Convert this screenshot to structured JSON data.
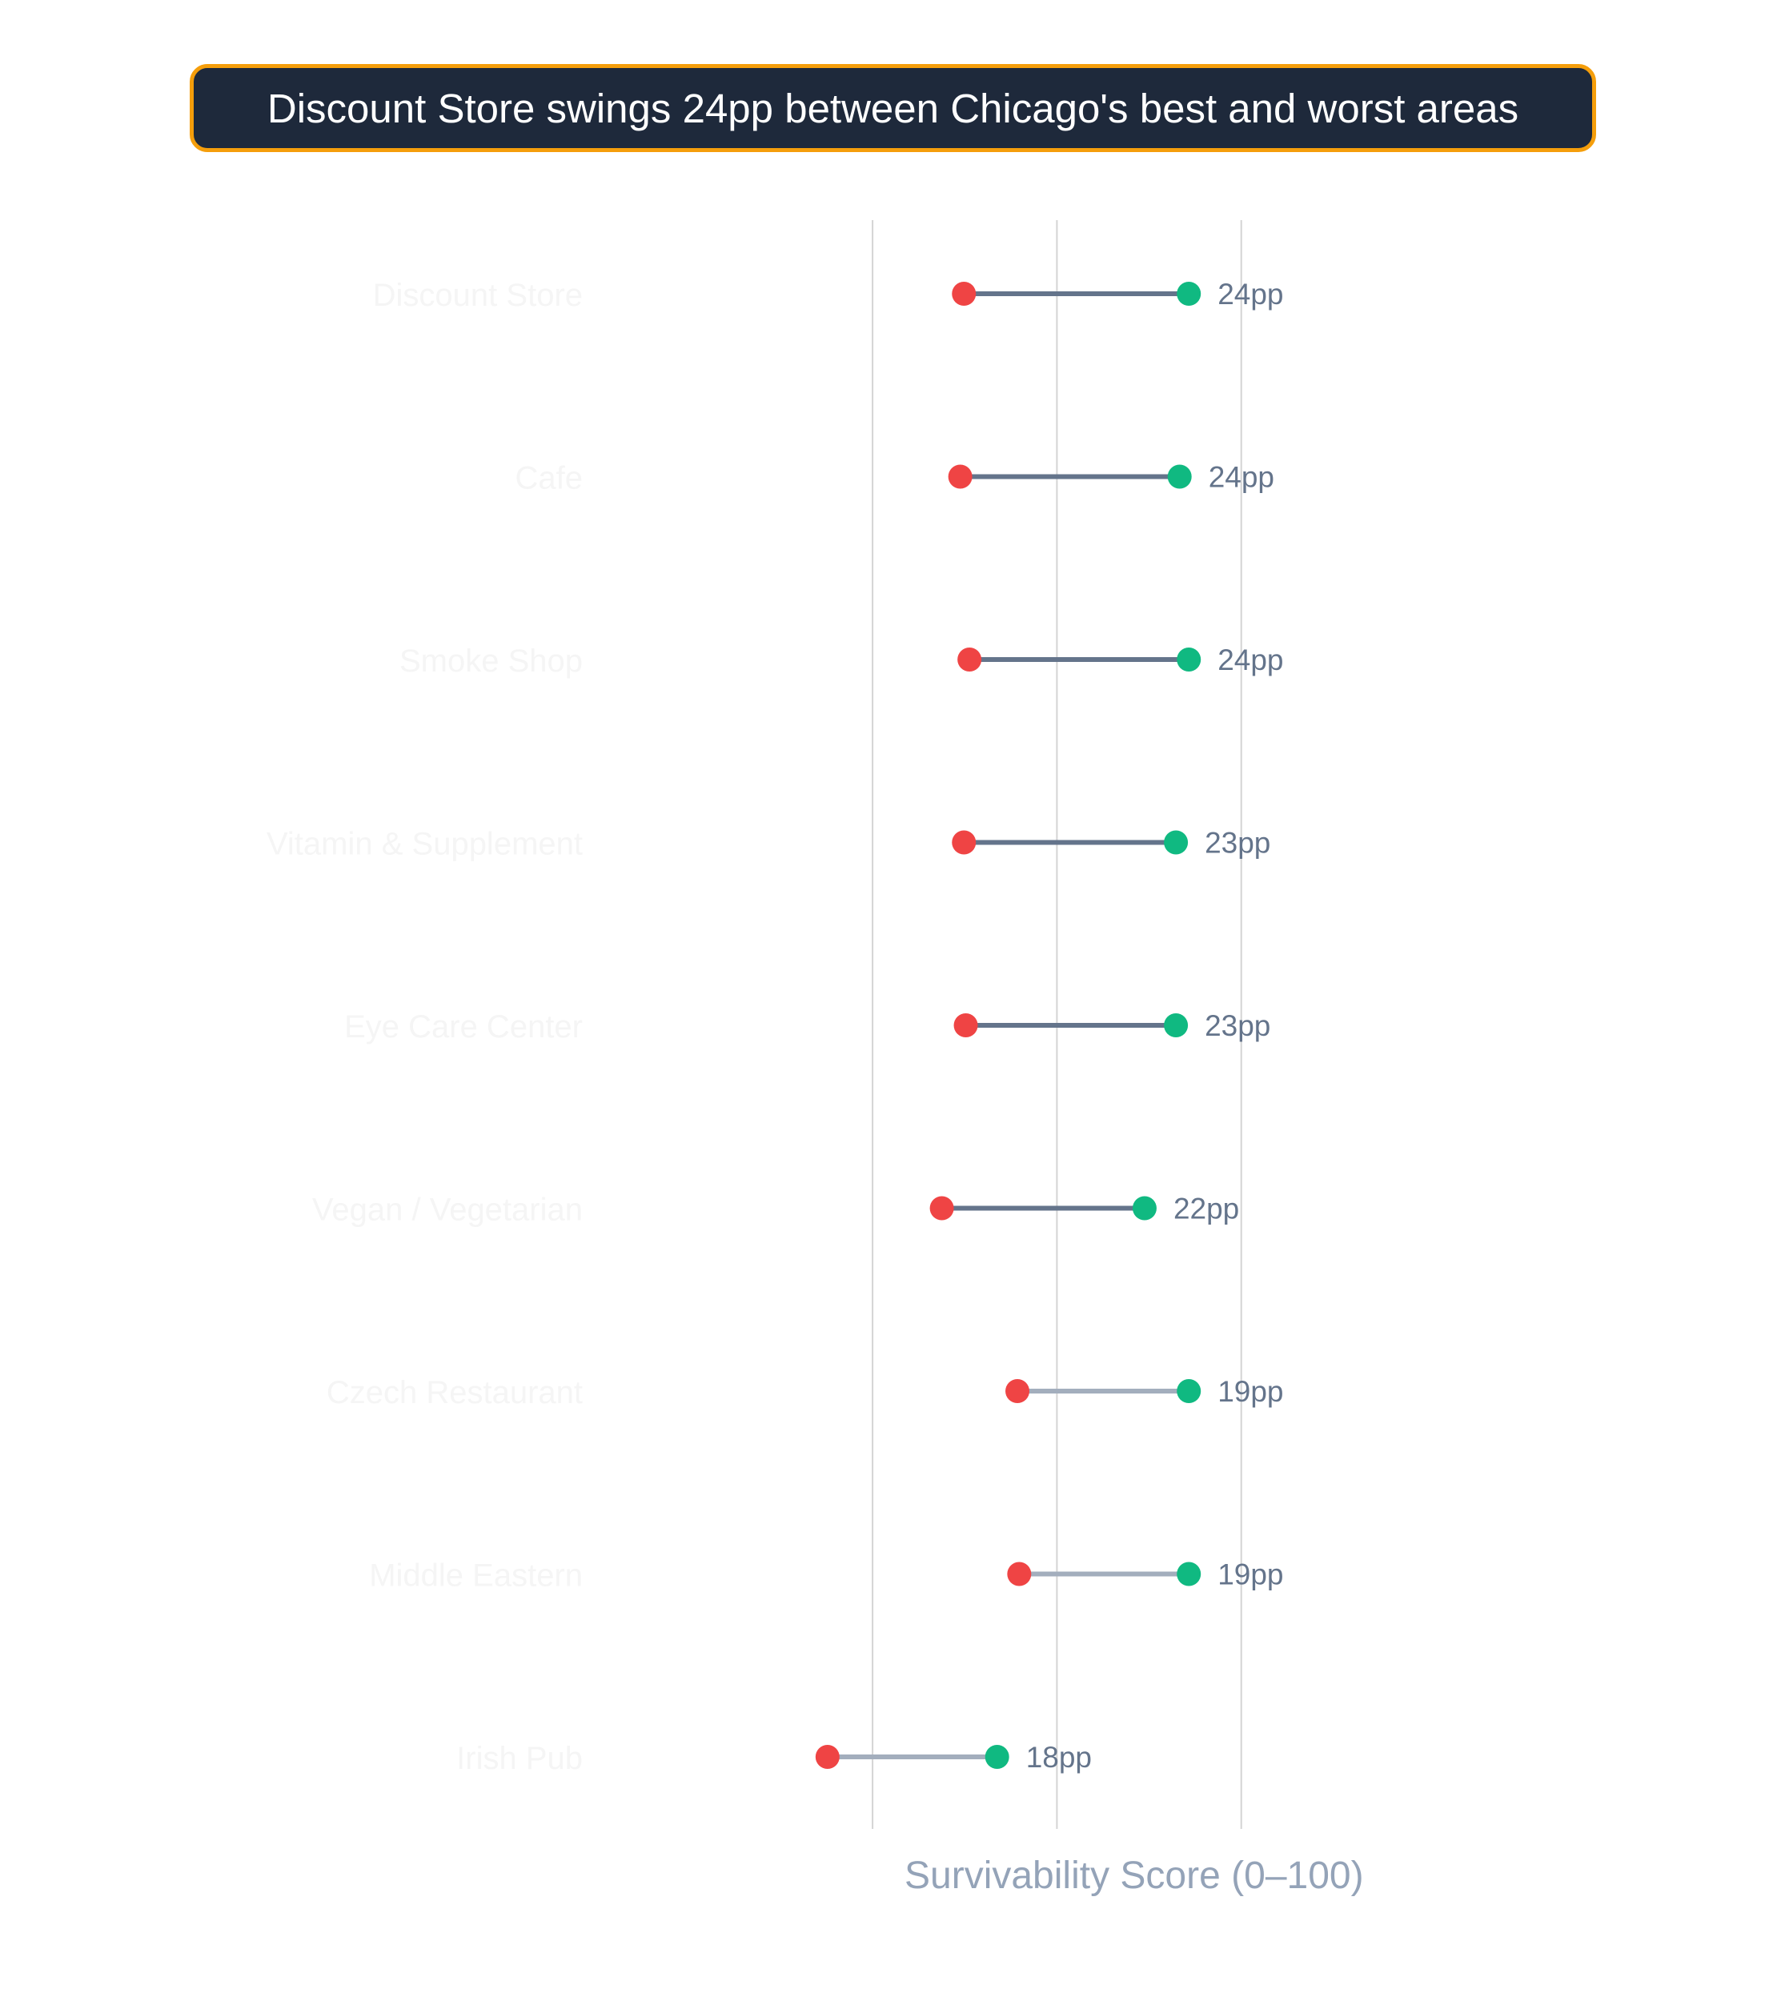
{
  "chart_data": {
    "type": "dumbbell",
    "title": "Discount Store swings 24pp between Chicago's best and worst areas",
    "xlabel": "Survivability Score (0–100)",
    "ylabel": "",
    "xlim": [
      50,
      83
    ],
    "grid": "vertical",
    "categories": [
      "Discount Store",
      "Cafe",
      "Smoke Shop",
      "Vitamin & Supplement",
      "Eye Care Center",
      "Vegan / Vegetarian",
      "Czech Restaurant",
      "Middle Eastern",
      "Irish Pub"
    ],
    "low_values": [
      58.0,
      57.8,
      58.3,
      58.0,
      58.1,
      56.8,
      60.9,
      61.0,
      50.6
    ],
    "high_values": [
      70.2,
      69.7,
      70.2,
      69.5,
      69.5,
      67.8,
      70.2,
      70.2,
      59.8
    ],
    "gap_labels": [
      "24pp",
      "24pp",
      "24pp",
      "23pp",
      "23pp",
      "22pp",
      "19pp",
      "19pp",
      "18pp"
    ],
    "colors": {
      "low": "#ef4444",
      "high": "#10b981",
      "line_dark": "#64748b",
      "line_light": "#a3aebd",
      "grid": "#d4d4d4",
      "gap_label": "#64748b",
      "category_label": "#f5f5f5"
    }
  }
}
